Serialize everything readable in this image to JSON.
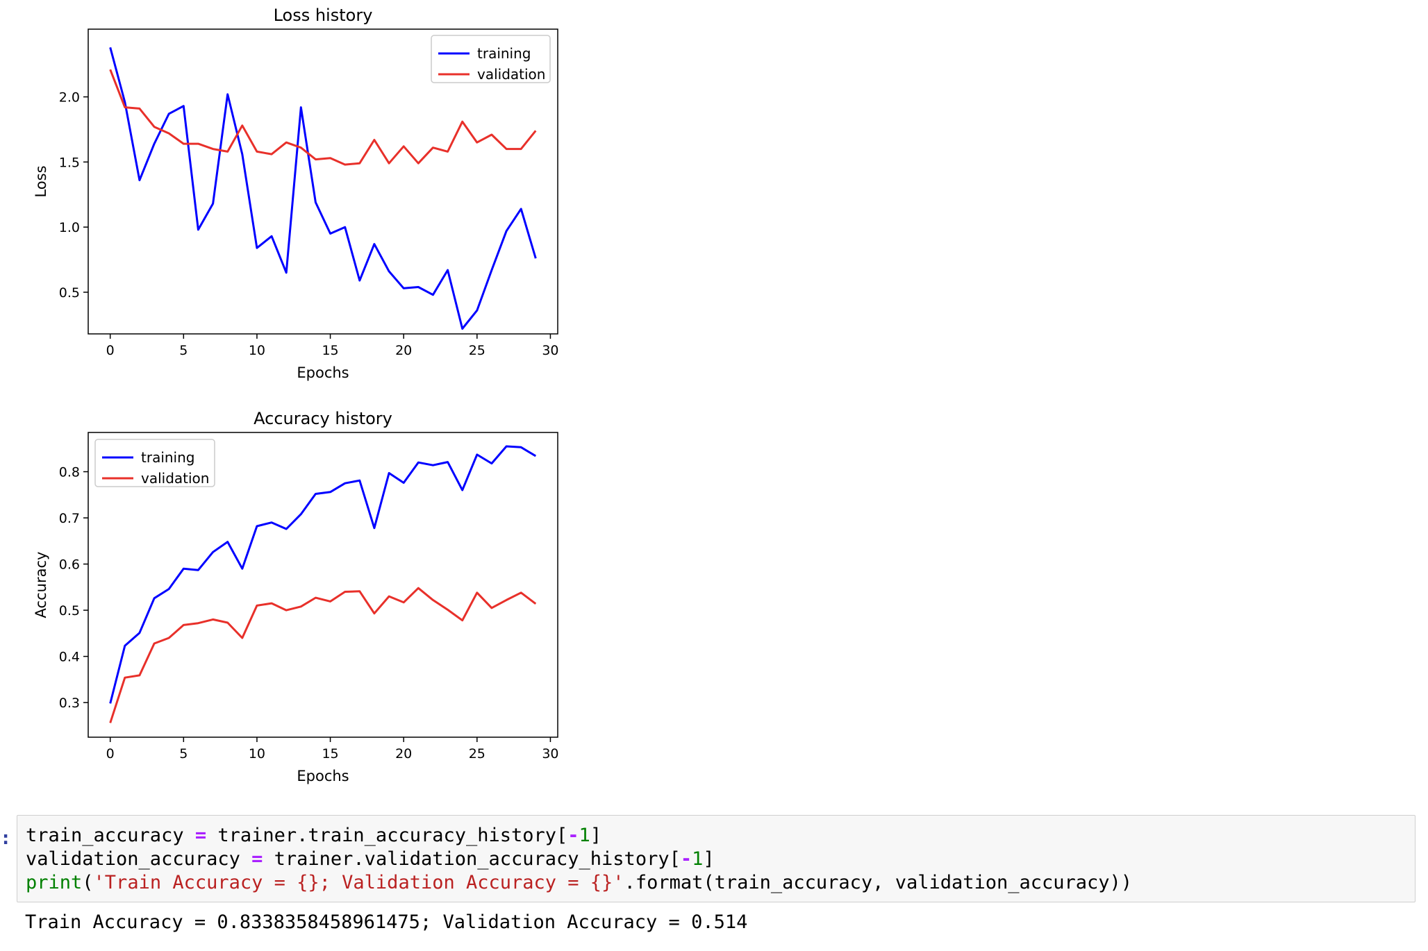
{
  "charts": {
    "loss": {
      "title": "Loss history",
      "xlabel": "Epochs",
      "ylabel": "Loss",
      "xticks": [
        0,
        5,
        10,
        15,
        20,
        25,
        30
      ],
      "yticks": [
        "0.5",
        "1.0",
        "1.5",
        "2.0"
      ],
      "legend": [
        "training",
        "validation"
      ]
    },
    "accuracy": {
      "title": "Accuracy history",
      "xlabel": "Epochs",
      "ylabel": "Accuracy",
      "xticks": [
        0,
        5,
        10,
        15,
        20,
        25,
        30
      ],
      "yticks": [
        "0.3",
        "0.4",
        "0.5",
        "0.6",
        "0.7",
        "0.8"
      ],
      "legend": [
        "training",
        "validation"
      ]
    }
  },
  "chart_data": [
    {
      "type": "line",
      "title": "Loss history",
      "xlabel": "Epochs",
      "ylabel": "Loss",
      "xlim": [
        -1.5,
        30.5
      ],
      "ylim": [
        0.18,
        2.52
      ],
      "legend_position": "top-right",
      "x": [
        0,
        1,
        2,
        3,
        4,
        5,
        6,
        7,
        8,
        9,
        10,
        11,
        12,
        13,
        14,
        15,
        16,
        17,
        18,
        19,
        20,
        21,
        22,
        23,
        24,
        25,
        26,
        27,
        28,
        29
      ],
      "series": [
        {
          "name": "training",
          "color": "#0000ff",
          "values": [
            2.38,
            1.96,
            1.36,
            1.64,
            1.87,
            1.93,
            0.98,
            1.18,
            2.02,
            1.56,
            0.84,
            0.93,
            0.65,
            1.92,
            1.19,
            0.95,
            1.0,
            0.59,
            0.87,
            0.66,
            0.53,
            0.54,
            0.48,
            0.67,
            0.22,
            0.36,
            0.67,
            0.97,
            1.14,
            0.76
          ]
        },
        {
          "name": "validation",
          "color": "#e8302a",
          "values": [
            2.21,
            1.92,
            1.91,
            1.77,
            1.72,
            1.64,
            1.64,
            1.6,
            1.58,
            1.78,
            1.58,
            1.56,
            1.65,
            1.61,
            1.52,
            1.53,
            1.48,
            1.49,
            1.67,
            1.49,
            1.62,
            1.49,
            1.61,
            1.58,
            1.81,
            1.65,
            1.71,
            1.6,
            1.6,
            1.74
          ]
        }
      ]
    },
    {
      "type": "line",
      "title": "Accuracy history",
      "xlabel": "Epochs",
      "ylabel": "Accuracy",
      "xlim": [
        -1.5,
        30.5
      ],
      "ylim": [
        0.225,
        0.885
      ],
      "legend_position": "top-left",
      "x": [
        0,
        1,
        2,
        3,
        4,
        5,
        6,
        7,
        8,
        9,
        10,
        11,
        12,
        13,
        14,
        15,
        16,
        17,
        18,
        19,
        20,
        21,
        22,
        23,
        24,
        25,
        26,
        27,
        28,
        29
      ],
      "series": [
        {
          "name": "training",
          "color": "#0000ff",
          "values": [
            0.298,
            0.423,
            0.451,
            0.526,
            0.546,
            0.59,
            0.587,
            0.626,
            0.648,
            0.59,
            0.682,
            0.69,
            0.676,
            0.708,
            0.752,
            0.756,
            0.775,
            0.781,
            0.678,
            0.797,
            0.776,
            0.82,
            0.814,
            0.821,
            0.76,
            0.837,
            0.818,
            0.855,
            0.853,
            0.834
          ]
        },
        {
          "name": "validation",
          "color": "#e8302a",
          "values": [
            0.256,
            0.354,
            0.359,
            0.428,
            0.44,
            0.468,
            0.472,
            0.48,
            0.473,
            0.44,
            0.51,
            0.515,
            0.5,
            0.508,
            0.527,
            0.519,
            0.54,
            0.541,
            0.493,
            0.53,
            0.517,
            0.548,
            0.522,
            0.501,
            0.478,
            0.538,
            0.505,
            0.522,
            0.538,
            0.514
          ]
        }
      ]
    }
  ],
  "cell": {
    "prompt": ":",
    "code": {
      "l1_var": "train_accuracy",
      "l1_eq": " = ",
      "l1_rhs": "trainer.train_accuracy_history[",
      "l1_minus": "-",
      "l1_num": "1",
      "l1_close": "]",
      "l2_var": "validation_accuracy",
      "l2_eq": " = ",
      "l2_rhs": "trainer.validation_accuracy_history[",
      "l2_minus": "-",
      "l2_num": "1",
      "l2_close": "]",
      "l3_print": "print",
      "l3_open": "(",
      "l3_str": "'Train Accuracy = {}; Validation Accuracy = {}'",
      "l3_rest": ".format(train_accuracy, validation_accuracy))"
    },
    "output": "Train Accuracy = 0.8338358458961475; Validation Accuracy = 0.514"
  }
}
